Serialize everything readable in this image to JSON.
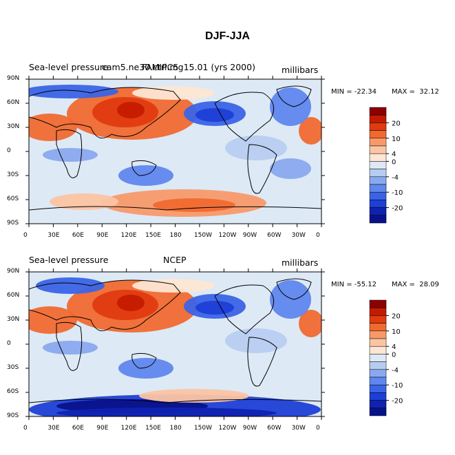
{
  "title": "DJF-JJA",
  "lat_labels": [
    "90N",
    "60N",
    "30N",
    "0",
    "30S",
    "60S",
    "90S"
  ],
  "lon_labels": [
    "0",
    "30E",
    "60E",
    "90E",
    "120E",
    "150E",
    "180",
    "150W",
    "120W",
    "90W",
    "60W",
    "30W",
    "0"
  ],
  "colorbar_labels": [
    "20",
    "10",
    "4",
    "0",
    "-4",
    "-10",
    "-20"
  ],
  "colorbar_colors": [
    "#8b0000",
    "#c41b00",
    "#e03a10",
    "#f06a30",
    "#f79a6a",
    "#fbc4a3",
    "#fde6d3",
    "#dde9f5",
    "#b7cdf0",
    "#89a9ee",
    "#5f87ee",
    "#3a64e6",
    "#1e3fd6",
    "#0f22b0",
    "#07128a"
  ],
  "panels": [
    {
      "left_label": "Sea-level pressure",
      "center_label": "FAMIPC5",
      "case_label": "cam5.ne30.ctrl.mg15.01 (yrs 2000)",
      "units": "millibars",
      "min_label": "MIN = -22.34",
      "max_label": "MAX =  32.12"
    },
    {
      "left_label": "Sea-level pressure",
      "center_label": "NCEP",
      "case_label": "",
      "units": "millibars",
      "min_label": "MIN = -55.12",
      "max_label": "MAX =  28.09"
    }
  ]
}
